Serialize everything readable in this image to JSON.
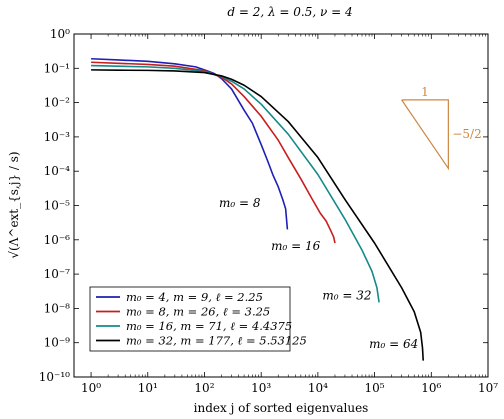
{
  "chart_data": {
    "type": "line",
    "title": "d = 2, λ = 0.5, ν = 4",
    "xlabel": "index j of sorted eigenvalues",
    "ylabel": "√(Λ^ext_{s,j} / s)",
    "xscale": "log",
    "yscale": "log",
    "xlim": [
      0.5,
      10000000
    ],
    "ylim": [
      1e-10,
      1
    ],
    "x_ticks": [
      {
        "value": 1,
        "label": "10⁰"
      },
      {
        "value": 10,
        "label": "10¹"
      },
      {
        "value": 100,
        "label": "10²"
      },
      {
        "value": 1000,
        "label": "10³"
      },
      {
        "value": 10000,
        "label": "10⁴"
      },
      {
        "value": 100000,
        "label": "10⁵"
      },
      {
        "value": 1000000,
        "label": "10⁶"
      },
      {
        "value": 10000000,
        "label": "10⁷"
      }
    ],
    "y_ticks": [
      {
        "value": 1,
        "label": "10⁰"
      },
      {
        "value": 0.1,
        "label": "10⁻¹"
      },
      {
        "value": 0.01,
        "label": "10⁻²"
      },
      {
        "value": 0.001,
        "label": "10⁻³"
      },
      {
        "value": 0.0001,
        "label": "10⁻⁴"
      },
      {
        "value": 1e-05,
        "label": "10⁻⁵"
      },
      {
        "value": 1e-06,
        "label": "10⁻⁶"
      },
      {
        "value": 1e-07,
        "label": "10⁻⁷"
      },
      {
        "value": 1e-08,
        "label": "10⁻⁸"
      },
      {
        "value": 1e-09,
        "label": "10⁻⁹"
      },
      {
        "value": 1e-10,
        "label": "10⁻¹⁰"
      }
    ],
    "grid": false,
    "legend_position": "bottom-left",
    "series": [
      {
        "name": "m₀ = 4, m = 9, ℓ = 2.25",
        "curve_label": "m₀ = 8",
        "color": "#1f1fb4",
        "x": [
          1,
          3,
          10,
          30,
          70,
          100,
          150,
          200,
          300,
          500,
          700,
          1000,
          1300,
          1600,
          2000,
          2400,
          2700,
          2900
        ],
        "y": [
          0.19,
          0.175,
          0.16,
          0.135,
          0.11,
          0.09,
          0.07,
          0.05,
          0.025,
          0.006,
          0.0025,
          0.0006,
          0.0002,
          8e-05,
          3.5e-05,
          1.5e-05,
          8e-06,
          2e-06
        ]
      },
      {
        "name": "m₀ = 8, m = 26, ℓ = 3.25",
        "curve_label": "m₀ = 16",
        "color": "#c81e1e",
        "x": [
          1,
          3,
          10,
          30,
          100,
          200,
          300,
          500,
          1000,
          2000,
          3000,
          5000,
          8000,
          11000,
          14000,
          17000,
          19000,
          20000
        ],
        "y": [
          0.15,
          0.14,
          0.13,
          0.115,
          0.085,
          0.055,
          0.035,
          0.015,
          0.004,
          0.0008,
          0.00025,
          6e-05,
          1.5e-05,
          6e-06,
          3.5e-06,
          1.8e-06,
          1.2e-06,
          8e-07
        ]
      },
      {
        "name": "m₀ = 16, m = 71, ℓ = 4.4375",
        "curve_label": "m₀ = 32",
        "color": "#158a8a",
        "x": [
          1,
          3,
          10,
          30,
          100,
          200,
          300,
          500,
          1000,
          3000,
          10000,
          30000,
          60000,
          90000,
          110000,
          120000
        ],
        "y": [
          0.12,
          0.115,
          0.11,
          0.1,
          0.08,
          0.058,
          0.042,
          0.025,
          0.009,
          0.0012,
          8e-05,
          4e-06,
          5e-07,
          1.2e-07,
          4e-08,
          1.5e-08
        ]
      },
      {
        "name": "m₀ = 32, m = 177, ℓ = 5.53125",
        "curve_label": "m₀ = 64",
        "color": "#000000",
        "x": [
          1,
          3,
          10,
          30,
          100,
          200,
          300,
          500,
          1000,
          3000,
          10000,
          30000,
          100000,
          300000,
          500000,
          650000,
          700000,
          720000
        ],
        "y": [
          0.09,
          0.088,
          0.087,
          0.084,
          0.075,
          0.06,
          0.048,
          0.032,
          0.015,
          0.0028,
          0.00025,
          1.5e-05,
          8e-07,
          4e-08,
          8e-09,
          2e-09,
          7e-10,
          3e-10
        ]
      }
    ],
    "annotations": {
      "slope_triangle": {
        "color": "#cc8844",
        "run_label": "1",
        "rise_label": "−5/2",
        "x_start": 300000,
        "x_end": 2000000,
        "y_top": 0.012,
        "y_bottom": 0.00012
      },
      "curve_labels": [
        {
          "text": "m₀ = 8",
          "x": 180,
          "y": 9e-06
        },
        {
          "text": "m₀ = 16",
          "x": 1500,
          "y": 5e-07
        },
        {
          "text": "m₀ = 32",
          "x": 12000,
          "y": 1.8e-08
        },
        {
          "text": "m₀ = 64",
          "x": 80000,
          "y": 7e-10
        }
      ]
    }
  }
}
